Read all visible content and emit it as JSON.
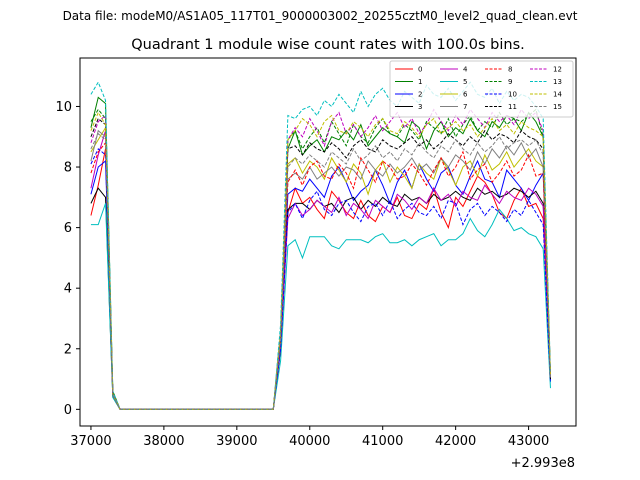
{
  "chart_data": {
    "type": "line",
    "suptitle": "Data file: modeM0/AS1A05_117T01_9000003002_20255cztM0_level2_quad_clean.evt",
    "title": "Quadrant 1 module wise count rates with 100.0s bins.",
    "xlabel": "",
    "ylabel": "",
    "x_offset_label": "+2.993e8",
    "xlim": [
      36850,
      43650
    ],
    "ylim": [
      -0.55,
      11.6
    ],
    "x_ticks": [
      "37000",
      "38000",
      "39000",
      "40000",
      "41000",
      "42000",
      "43000"
    ],
    "y_ticks": [
      "0",
      "2",
      "4",
      "6",
      "8",
      "10"
    ],
    "grid": false,
    "legend_position": "top-right",
    "x": [
      37000,
      37100,
      37200,
      37300,
      37400,
      37500,
      37600,
      37700,
      37800,
      37900,
      38000,
      38100,
      38200,
      38300,
      38400,
      38500,
      38600,
      38700,
      38800,
      38900,
      39000,
      39100,
      39200,
      39300,
      39400,
      39500,
      39600,
      39700,
      39800,
      39900,
      40000,
      40100,
      40200,
      40300,
      40400,
      40500,
      40600,
      40700,
      40800,
      40900,
      41000,
      41100,
      41200,
      41300,
      41400,
      41500,
      41600,
      41700,
      41800,
      41900,
      42000,
      42100,
      42200,
      42300,
      42400,
      42500,
      42600,
      42700,
      42800,
      42900,
      43000,
      43100,
      43200,
      43300
    ],
    "series": [
      {
        "name": "0",
        "color": "#ff0000",
        "dash": "solid",
        "values": [
          6.4,
          7.4,
          8.6,
          0.5,
          0,
          0,
          0,
          0,
          0,
          0,
          0,
          0,
          0,
          0,
          0,
          0,
          0,
          0,
          0,
          0,
          0,
          0,
          0,
          0,
          0,
          0,
          2.0,
          6.5,
          7.3,
          6.8,
          7.0,
          6.6,
          6.3,
          7.2,
          6.9,
          6.5,
          6.3,
          6.9,
          6.4,
          6.2,
          6.7,
          6.5,
          7.0,
          6.4,
          6.3,
          6.8,
          6.6,
          7.3,
          6.5,
          6.0,
          7.0,
          6.7,
          7.2,
          7.7,
          7.5,
          7.1,
          6.5,
          6.3,
          6.9,
          7.3,
          6.7,
          6.8,
          6.3,
          1.1
        ]
      },
      {
        "name": "1",
        "color": "#008000",
        "dash": "solid",
        "values": [
          9.3,
          10.3,
          10.1,
          0.6,
          0,
          0,
          0,
          0,
          0,
          0,
          0,
          0,
          0,
          0,
          0,
          0,
          0,
          0,
          0,
          0,
          0,
          0,
          0,
          0,
          0,
          0,
          2.5,
          8.6,
          9.2,
          8.4,
          8.7,
          8.9,
          8.5,
          9.0,
          8.9,
          9.2,
          8.9,
          9.4,
          8.7,
          9.0,
          9.3,
          9.1,
          9.0,
          8.8,
          9.5,
          9.3,
          8.6,
          9.2,
          9.5,
          9.0,
          9.3,
          9.1,
          9.6,
          9.2,
          9.0,
          9.5,
          9.3,
          9.7,
          9.6,
          9.2,
          9.8,
          9.5,
          9.0,
          1.0
        ]
      },
      {
        "name": "2",
        "color": "#0000ff",
        "dash": "solid",
        "values": [
          7.1,
          8.0,
          8.2,
          0.5,
          0,
          0,
          0,
          0,
          0,
          0,
          0,
          0,
          0,
          0,
          0,
          0,
          0,
          0,
          0,
          0,
          0,
          0,
          0,
          0,
          0,
          0,
          2.2,
          7.1,
          7.3,
          7.2,
          7.6,
          7.3,
          7.0,
          7.7,
          8.0,
          7.5,
          6.9,
          7.2,
          7.4,
          7.9,
          7.4,
          6.8,
          7.5,
          7.9,
          7.3,
          8.1,
          7.6,
          7.2,
          7.8,
          8.0,
          7.4,
          7.1,
          7.7,
          8.2,
          7.6,
          7.5,
          7.0,
          7.9,
          7.6,
          7.3,
          6.9,
          7.4,
          7.8,
          0.9
        ]
      },
      {
        "name": "3",
        "color": "#000000",
        "dash": "solid",
        "values": [
          6.8,
          7.3,
          7.0,
          0.4,
          0,
          0,
          0,
          0,
          0,
          0,
          0,
          0,
          0,
          0,
          0,
          0,
          0,
          0,
          0,
          0,
          0,
          0,
          0,
          0,
          0,
          0,
          2.0,
          6.6,
          6.8,
          6.8,
          6.6,
          6.9,
          6.7,
          6.8,
          6.5,
          6.9,
          7.0,
          6.6,
          6.9,
          6.7,
          7.0,
          6.8,
          6.7,
          7.1,
          6.9,
          7.0,
          6.8,
          7.1,
          6.9,
          7.0,
          7.2,
          7.0,
          6.9,
          7.3,
          7.1,
          7.2,
          7.0,
          7.1,
          7.3,
          7.2,
          7.0,
          7.2,
          6.8,
          1.0
        ]
      },
      {
        "name": "4",
        "color": "#bf00bf",
        "dash": "solid",
        "values": [
          7.3,
          8.4,
          9.2,
          0.5,
          0,
          0,
          0,
          0,
          0,
          0,
          0,
          0,
          0,
          0,
          0,
          0,
          0,
          0,
          0,
          0,
          0,
          0,
          0,
          0,
          0,
          0,
          2.1,
          6.3,
          6.8,
          6.4,
          6.6,
          6.9,
          6.7,
          6.5,
          7.0,
          6.4,
          6.8,
          6.6,
          6.3,
          6.9,
          6.7,
          6.5,
          7.1,
          6.9,
          6.6,
          7.0,
          6.8,
          7.3,
          6.9,
          7.1,
          6.7,
          7.2,
          7.0,
          6.9,
          7.4,
          7.1,
          6.8,
          7.2,
          7.0,
          6.9,
          7.3,
          7.1,
          6.7,
          1.0
        ]
      },
      {
        "name": "5",
        "color": "#00bfbf",
        "dash": "solid",
        "values": [
          6.1,
          6.1,
          6.8,
          0.4,
          0,
          0,
          0,
          0,
          0,
          0,
          0,
          0,
          0,
          0,
          0,
          0,
          0,
          0,
          0,
          0,
          0,
          0,
          0,
          0,
          0,
          0,
          1.6,
          5.4,
          5.6,
          5.0,
          5.7,
          5.7,
          5.7,
          5.4,
          5.3,
          5.6,
          5.6,
          5.6,
          5.5,
          5.7,
          5.8,
          5.5,
          5.5,
          5.6,
          5.4,
          5.6,
          5.7,
          5.8,
          5.4,
          5.6,
          5.6,
          5.8,
          6.3,
          5.9,
          5.7,
          6.1,
          6.6,
          6.3,
          5.9,
          6.0,
          5.8,
          5.7,
          5.3,
          0.7
        ]
      },
      {
        "name": "6",
        "color": "#bfbf00",
        "dash": "solid",
        "values": [
          8.5,
          8.9,
          9.3,
          0.5,
          0,
          0,
          0,
          0,
          0,
          0,
          0,
          0,
          0,
          0,
          0,
          0,
          0,
          0,
          0,
          0,
          0,
          0,
          0,
          0,
          0,
          0,
          2.3,
          8.1,
          8.3,
          7.8,
          8.2,
          8.0,
          7.6,
          8.3,
          7.9,
          7.5,
          8.1,
          7.8,
          7.1,
          7.9,
          8.2,
          7.5,
          8.0,
          7.7,
          7.3,
          8.1,
          7.8,
          7.6,
          8.3,
          7.9,
          7.4,
          8.0,
          8.2,
          7.7,
          8.4,
          7.9,
          8.1,
          8.5,
          8.0,
          8.3,
          8.6,
          8.2,
          8.0,
          1.1
        ]
      },
      {
        "name": "7",
        "color": "#808080",
        "dash": "solid",
        "values": [
          8.2,
          9.2,
          9.0,
          0.5,
          0,
          0,
          0,
          0,
          0,
          0,
          0,
          0,
          0,
          0,
          0,
          0,
          0,
          0,
          0,
          0,
          0,
          0,
          0,
          0,
          0,
          0,
          2.4,
          7.6,
          7.8,
          7.6,
          8.0,
          7.6,
          7.8,
          8.0,
          7.7,
          8.0,
          7.9,
          7.6,
          8.2,
          7.9,
          7.7,
          8.1,
          7.8,
          8.0,
          8.3,
          7.9,
          8.1,
          7.8,
          8.3,
          8.0,
          8.4,
          8.2,
          7.9,
          8.5,
          8.1,
          8.6,
          8.3,
          8.7,
          8.4,
          8.8,
          8.3,
          8.6,
          8.0,
          1.1
        ]
      },
      {
        "name": "8",
        "color": "#ff0000",
        "dash": "dashed",
        "values": [
          7.8,
          8.5,
          8.8,
          0.5,
          0,
          0,
          0,
          0,
          0,
          0,
          0,
          0,
          0,
          0,
          0,
          0,
          0,
          0,
          0,
          0,
          0,
          0,
          0,
          0,
          0,
          0,
          2.3,
          7.5,
          7.9,
          7.4,
          8.0,
          8.2,
          7.7,
          7.6,
          8.1,
          7.8,
          7.3,
          8.3,
          7.9,
          7.5,
          8.2,
          8.0,
          7.6,
          7.7,
          8.1,
          7.8,
          7.4,
          7.9,
          8.3,
          7.7,
          8.0,
          8.5,
          7.6,
          7.9,
          8.1,
          7.5,
          7.8,
          8.2,
          7.7,
          7.9,
          8.4,
          7.7,
          7.8,
          1.0
        ]
      },
      {
        "name": "9",
        "color": "#008000",
        "dash": "dashed",
        "values": [
          9.5,
          9.9,
          9.6,
          0.5,
          0,
          0,
          0,
          0,
          0,
          0,
          0,
          0,
          0,
          0,
          0,
          0,
          0,
          0,
          0,
          0,
          0,
          0,
          0,
          0,
          0,
          0,
          2.5,
          8.9,
          9.2,
          8.6,
          9.0,
          9.3,
          8.8,
          9.5,
          9.1,
          8.7,
          9.4,
          9.0,
          8.8,
          9.3,
          9.6,
          9.1,
          9.0,
          9.4,
          9.2,
          8.9,
          9.5,
          9.3,
          9.1,
          9.6,
          9.0,
          9.4,
          9.7,
          9.2,
          9.5,
          9.3,
          9.8,
          9.4,
          9.6,
          9.5,
          9.7,
          9.9,
          9.0,
          1.1
        ]
      },
      {
        "name": "10",
        "color": "#0000ff",
        "dash": "dashed",
        "values": [
          8.1,
          8.6,
          8.4,
          0.5,
          0,
          0,
          0,
          0,
          0,
          0,
          0,
          0,
          0,
          0,
          0,
          0,
          0,
          0,
          0,
          0,
          0,
          0,
          0,
          0,
          0,
          0,
          2.0,
          6.5,
          6.8,
          6.3,
          6.9,
          7.2,
          6.6,
          6.4,
          6.8,
          6.9,
          6.5,
          6.2,
          6.7,
          6.8,
          6.4,
          6.9,
          6.3,
          6.6,
          6.8,
          6.5,
          6.4,
          6.7,
          6.3,
          6.9,
          6.8,
          6.1,
          6.6,
          6.8,
          6.4,
          6.7,
          6.5,
          6.2,
          6.6,
          6.4,
          6.9,
          6.5,
          6.1,
          0.9
        ]
      },
      {
        "name": "11",
        "color": "#000000",
        "dash": "dashed",
        "values": [
          9.0,
          9.6,
          9.4,
          0.5,
          0,
          0,
          0,
          0,
          0,
          0,
          0,
          0,
          0,
          0,
          0,
          0,
          0,
          0,
          0,
          0,
          0,
          0,
          0,
          0,
          0,
          0,
          2.5,
          8.6,
          8.7,
          8.4,
          8.8,
          8.6,
          8.5,
          8.8,
          8.6,
          8.3,
          8.7,
          8.9,
          8.6,
          8.5,
          8.9,
          8.7,
          8.6,
          8.8,
          9.0,
          8.7,
          8.9,
          8.6,
          8.8,
          9.1,
          8.9,
          8.7,
          9.0,
          8.8,
          9.2,
          8.9,
          9.1,
          9.0,
          8.8,
          9.2,
          9.0,
          8.9,
          8.6,
          1.0
        ]
      },
      {
        "name": "12",
        "color": "#bf00bf",
        "dash": "dashed",
        "values": [
          8.8,
          9.5,
          9.7,
          0.5,
          0,
          0,
          0,
          0,
          0,
          0,
          0,
          0,
          0,
          0,
          0,
          0,
          0,
          0,
          0,
          0,
          0,
          0,
          0,
          0,
          0,
          0,
          2.6,
          8.9,
          9.3,
          9.0,
          9.6,
          9.2,
          8.7,
          9.5,
          9.8,
          9.1,
          9.4,
          9.0,
          9.3,
          9.7,
          9.2,
          9.5,
          9.8,
          9.3,
          9.6,
          9.1,
          9.4,
          9.9,
          9.5,
          9.2,
          9.7,
          9.4,
          9.9,
          9.6,
          9.3,
          9.8,
          9.5,
          9.7,
          9.4,
          9.9,
          9.6,
          9.8,
          9.2,
          1.1
        ]
      },
      {
        "name": "13",
        "color": "#00bfbf",
        "dash": "dashed",
        "values": [
          10.4,
          10.8,
          10.2,
          0.6,
          0,
          0,
          0,
          0,
          0,
          0,
          0,
          0,
          0,
          0,
          0,
          0,
          0,
          0,
          0,
          0,
          0,
          0,
          0,
          0,
          0,
          0,
          2.8,
          9.7,
          9.6,
          9.9,
          10.0,
          9.7,
          10.2,
          10.0,
          10.4,
          10.1,
          9.8,
          10.5,
          10.0,
          10.4,
          10.6,
          10.2,
          10.0,
          10.5,
          10.3,
          10.1,
          10.7,
          10.4,
          10.3,
          10.6,
          10.2,
          10.5,
          10.8,
          10.4,
          10.3,
          10.6,
          10.1,
          10.5,
          10.2,
          10.4,
          10.3,
          10.0,
          9.6,
          1.2
        ]
      },
      {
        "name": "14",
        "color": "#bfbf00",
        "dash": "dashed",
        "values": [
          9.2,
          9.8,
          9.4,
          0.5,
          0,
          0,
          0,
          0,
          0,
          0,
          0,
          0,
          0,
          0,
          0,
          0,
          0,
          0,
          0,
          0,
          0,
          0,
          0,
          0,
          0,
          0,
          2.5,
          8.9,
          9.2,
          9.6,
          9.4,
          9.0,
          9.5,
          9.7,
          9.2,
          9.1,
          9.5,
          9.3,
          9.0,
          9.4,
          9.6,
          9.2,
          9.1,
          9.5,
          9.3,
          9.0,
          9.4,
          9.6,
          9.1,
          9.3,
          9.5,
          9.2,
          9.4,
          9.0,
          9.3,
          9.6,
          9.2,
          9.4,
          9.1,
          9.5,
          9.3,
          9.2,
          9.0,
          1.1
        ]
      },
      {
        "name": "15",
        "color": "#808080",
        "dash": "dashed",
        "values": [
          8.6,
          9.1,
          8.9,
          0.5,
          0,
          0,
          0,
          0,
          0,
          0,
          0,
          0,
          0,
          0,
          0,
          0,
          0,
          0,
          0,
          0,
          0,
          0,
          0,
          0,
          0,
          0,
          2.3,
          8.0,
          8.3,
          8.1,
          8.4,
          8.2,
          8.0,
          8.5,
          8.3,
          8.1,
          8.6,
          8.2,
          8.4,
          8.7,
          8.3,
          8.5,
          8.2,
          8.6,
          8.4,
          8.8,
          8.5,
          8.3,
          8.7,
          8.5,
          8.9,
          8.6,
          8.4,
          8.8,
          8.5,
          8.7,
          9.0,
          8.6,
          8.8,
          8.9,
          8.7,
          8.9,
          8.4,
          1.0
        ]
      }
    ]
  }
}
